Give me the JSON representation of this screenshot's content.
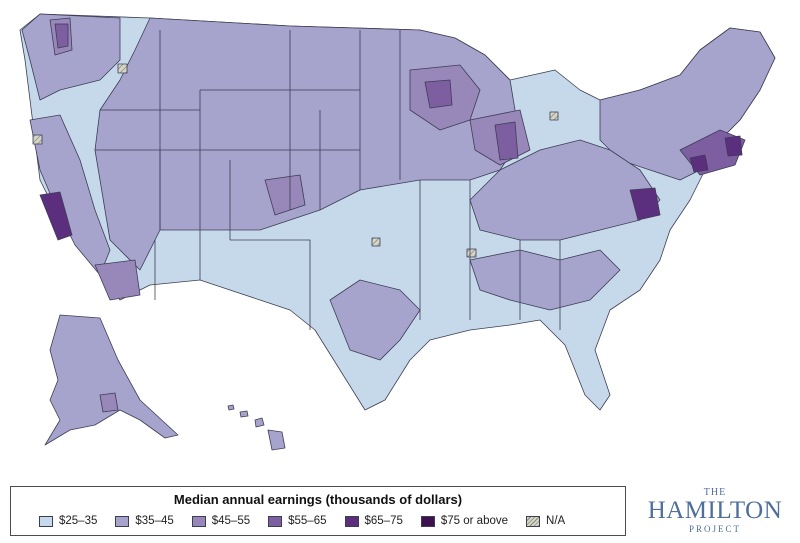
{
  "legend": {
    "title": "Median annual earnings (thousands of dollars)",
    "items": [
      {
        "label": "$25–35",
        "color": "#c6d9ea"
      },
      {
        "label": "$35–45",
        "color": "#a6a4cc"
      },
      {
        "label": "$45–55",
        "color": "#9887b9"
      },
      {
        "label": "$55–65",
        "color": "#7d5ea1"
      },
      {
        "label": "$65–75",
        "color": "#5b2e7e"
      },
      {
        "label": "$75 or above",
        "color": "#3d1050"
      },
      {
        "label": "N/A",
        "color": "hatch"
      }
    ]
  },
  "logo": {
    "top": "THE",
    "main": "HAMILTON",
    "bottom": "PROJECT"
  },
  "map": {
    "region": "United States (commuting zones)",
    "stroke_color": "#3d3d55",
    "highest_earning_areas": [
      "San Francisco Bay Area",
      "Washington DC",
      "Boston–New York corridor"
    ]
  }
}
